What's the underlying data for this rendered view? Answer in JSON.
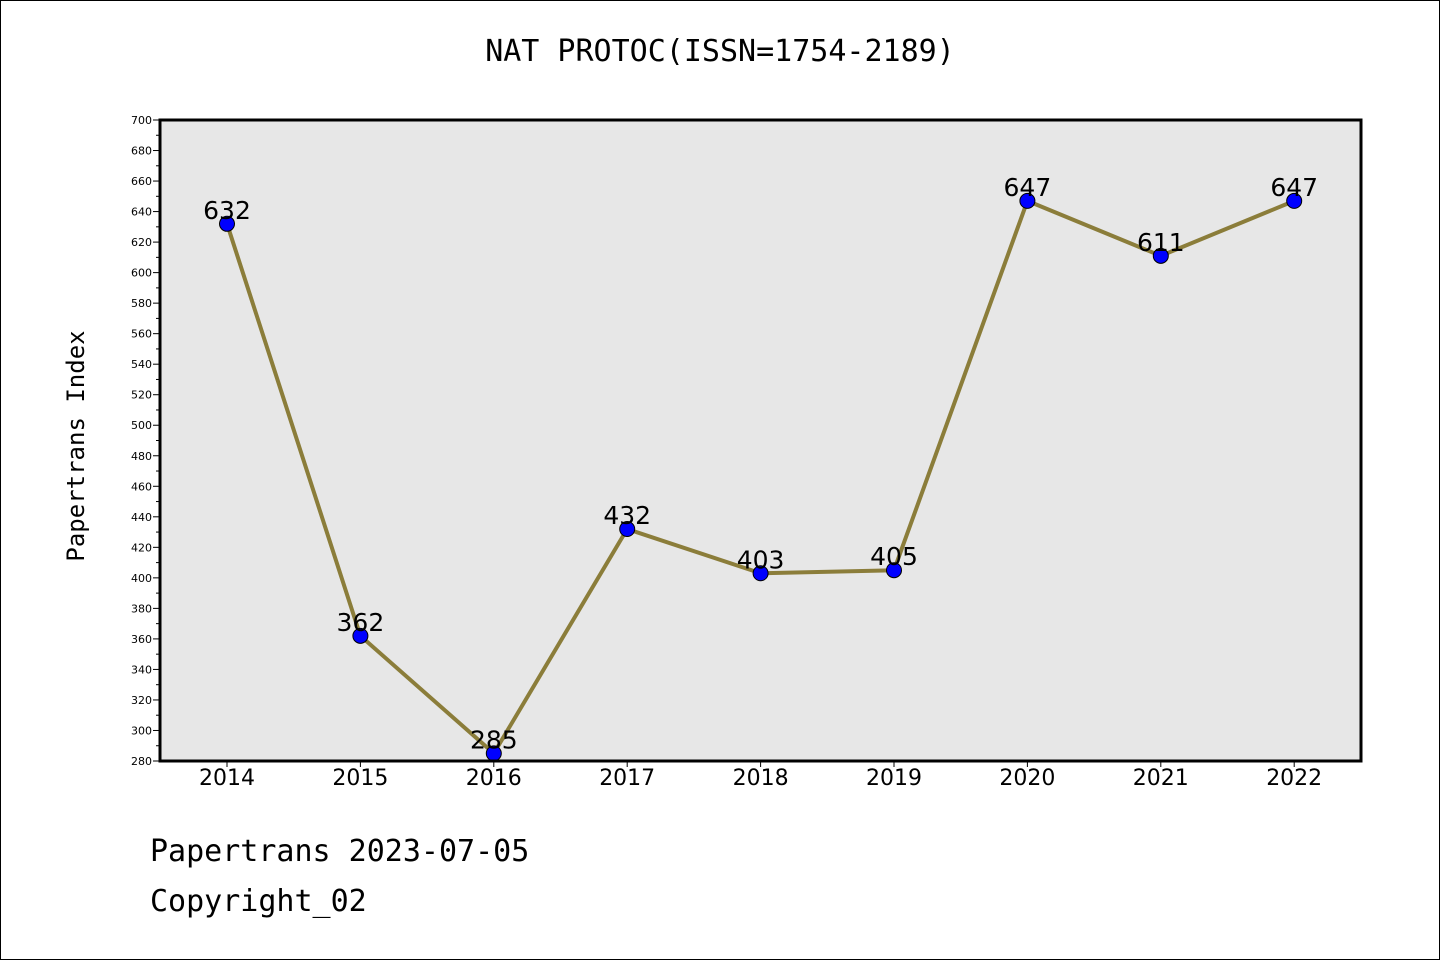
{
  "chart_data": {
    "type": "line",
    "title": "NAT PROTOC(ISSN=1754-2189)",
    "xlabel": "",
    "ylabel": "Papertrans Index",
    "categories": [
      "2014",
      "2015",
      "2016",
      "2017",
      "2018",
      "2019",
      "2020",
      "2021",
      "2022"
    ],
    "series": [
      {
        "values": [
          632,
          362,
          285,
          432,
          403,
          405,
          647,
          611,
          647
        ]
      }
    ],
    "data_labels": [
      "632",
      "362",
      "285",
      "432",
      "403",
      "405",
      "647",
      "611",
      "647"
    ],
    "ylim": [
      280,
      700
    ],
    "yticks": [
      280,
      300,
      320,
      340,
      360,
      380,
      400,
      420,
      440,
      460,
      480,
      500,
      520,
      540,
      560,
      580,
      600,
      620,
      640,
      660,
      680,
      700
    ],
    "grid": false,
    "colors": {
      "line": "#8b7d3a",
      "marker": "#0000ff",
      "plot_bg": "#e7e7e7"
    }
  },
  "footer": {
    "line1": "Papertrans 2023-07-05",
    "line2": "Copyright_02"
  }
}
